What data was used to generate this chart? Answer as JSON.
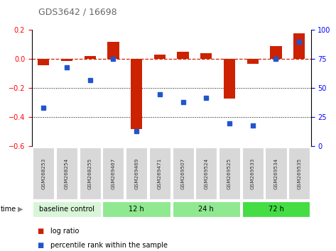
{
  "title": "GDS3642 / 16698",
  "samples": [
    "GSM268253",
    "GSM268254",
    "GSM268255",
    "GSM269467",
    "GSM269469",
    "GSM269471",
    "GSM269507",
    "GSM269524",
    "GSM269525",
    "GSM269533",
    "GSM269534",
    "GSM269535"
  ],
  "log_ratio": [
    -0.04,
    -0.01,
    0.02,
    0.12,
    -0.48,
    0.03,
    0.05,
    0.04,
    -0.27,
    -0.03,
    0.09,
    0.18
  ],
  "percentile_rank": [
    33,
    68,
    57,
    75,
    13,
    45,
    38,
    42,
    20,
    18,
    75,
    90
  ],
  "ylim_left": [
    -0.6,
    0.2
  ],
  "ylim_right": [
    0,
    100
  ],
  "yticks_left": [
    -0.6,
    -0.4,
    -0.2,
    0.0,
    0.2
  ],
  "yticks_right": [
    0,
    25,
    50,
    75,
    100
  ],
  "bar_color": "#cc2200",
  "dot_color": "#2255cc",
  "hline_color": "#cc2200",
  "groups": [
    {
      "label": "baseline control",
      "start": 0,
      "end": 3,
      "color": "#d8f5d8"
    },
    {
      "label": "12 h",
      "start": 3,
      "end": 6,
      "color": "#90e890"
    },
    {
      "label": "24 h",
      "start": 6,
      "end": 9,
      "color": "#90e890"
    },
    {
      "label": "72 h",
      "start": 9,
      "end": 12,
      "color": "#44dd44"
    }
  ],
  "legend_items": [
    {
      "color": "#cc2200",
      "label": "log ratio"
    },
    {
      "color": "#2255cc",
      "label": "percentile rank within the sample"
    }
  ],
  "background_color": "#ffffff",
  "tick_area_bg": "#cccccc",
  "title_color": "#666666",
  "bar_width": 0.5
}
